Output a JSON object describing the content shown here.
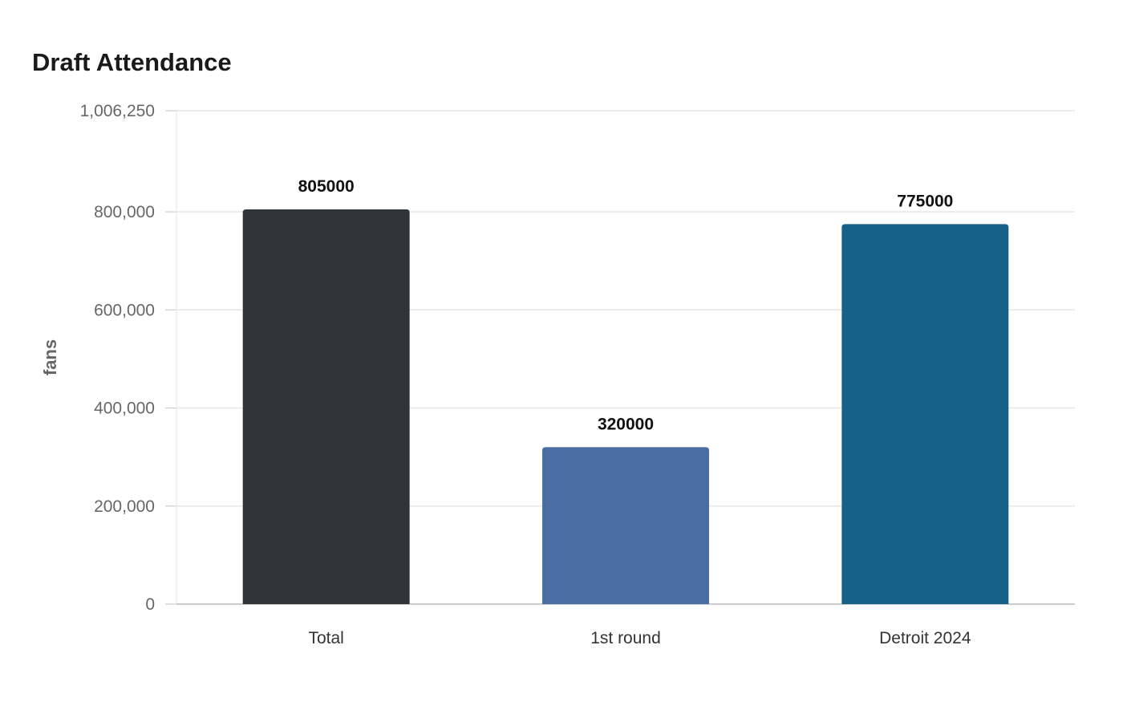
{
  "chart_data": {
    "type": "bar",
    "title": "Draft Attendance",
    "xlabel": "",
    "ylabel": "fans",
    "categories": [
      "Total",
      "1st round",
      "Detroit 2024"
    ],
    "values": [
      805000,
      320000,
      775000
    ],
    "data_labels": [
      "805000",
      "320000",
      "775000"
    ],
    "bar_colors": [
      "#2e3538",
      "#4a6da4",
      "#166188"
    ],
    "ylim": [
      0,
      1006250
    ],
    "yticks": [
      0,
      200000,
      400000,
      600000,
      800000,
      1006250
    ],
    "ytick_labels": [
      "0",
      "200,000",
      "400,000",
      "600,000",
      "800,000",
      "1,006,250"
    ],
    "grid": true,
    "legend": "none"
  }
}
